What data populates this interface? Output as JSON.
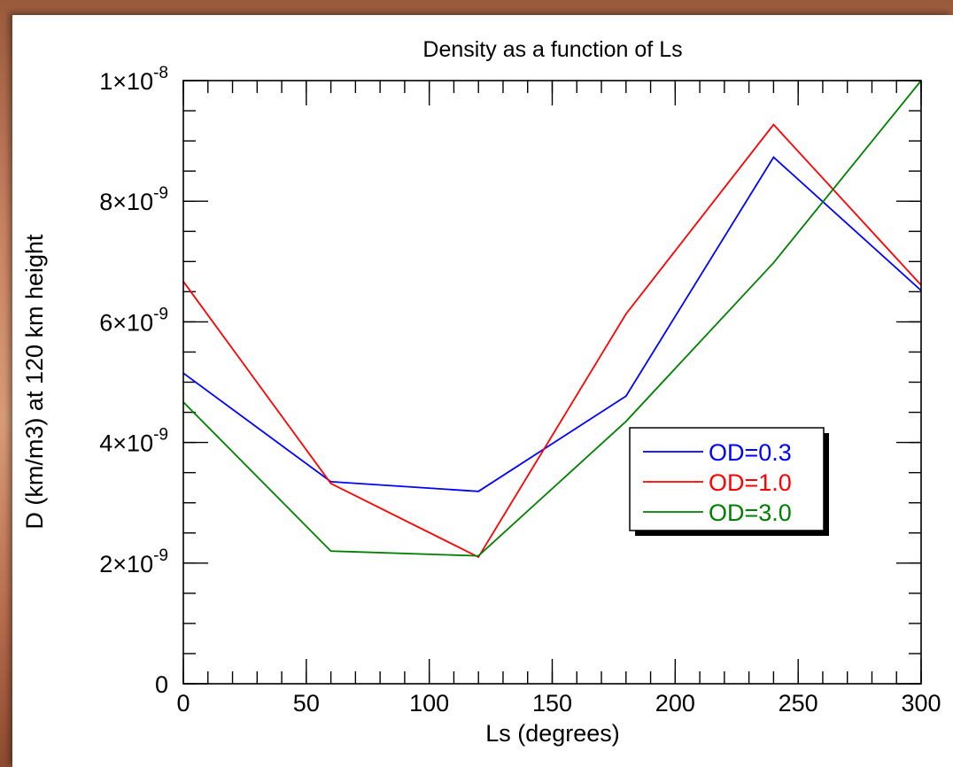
{
  "chart_data": {
    "type": "line",
    "title": "Density as a function of Ls",
    "xlabel": "Ls (degrees)",
    "ylabel": "D (km/m3) at 120 km height",
    "xlim": [
      0,
      300
    ],
    "ylim": [
      0,
      1e-08
    ],
    "x_ticks": [
      {
        "value": 0,
        "label": "0"
      },
      {
        "value": 50,
        "label": "50"
      },
      {
        "value": 100,
        "label": "100"
      },
      {
        "value": 150,
        "label": "150"
      },
      {
        "value": 200,
        "label": "200"
      },
      {
        "value": 250,
        "label": "250"
      },
      {
        "value": 300,
        "label": "300"
      }
    ],
    "y_ticks": [
      {
        "value": 0,
        "mantissa": "0",
        "exponent": ""
      },
      {
        "value": 2e-09,
        "mantissa": "2×10",
        "exponent": "-9"
      },
      {
        "value": 4e-09,
        "mantissa": "4×10",
        "exponent": "-9"
      },
      {
        "value": 6e-09,
        "mantissa": "6×10",
        "exponent": "-9"
      },
      {
        "value": 8e-09,
        "mantissa": "8×10",
        "exponent": "-9"
      },
      {
        "value": 1e-08,
        "mantissa": "1×10",
        "exponent": "-8"
      }
    ],
    "x_minor_step": 10,
    "y_minor_step": 5e-10,
    "grid": false,
    "legend_position": "right-middle",
    "x": [
      0,
      60,
      120,
      180,
      240,
      300
    ],
    "series": [
      {
        "name": "OD=0.3",
        "color": "#0000ff",
        "values": [
          5.15e-09,
          3.35e-09,
          3.19e-09,
          4.77e-09,
          8.73e-09,
          6.52e-09
        ]
      },
      {
        "name": "OD=1.0",
        "color": "#ff0000",
        "values": [
          6.67e-09,
          3.32e-09,
          2.1e-09,
          6.13e-09,
          9.27e-09,
          6.61e-09
        ]
      },
      {
        "name": "OD=3.0",
        "color": "#008000",
        "values": [
          4.67e-09,
          2.2e-09,
          2.12e-09,
          4.35e-09,
          6.98e-09,
          1e-08
        ]
      }
    ]
  }
}
